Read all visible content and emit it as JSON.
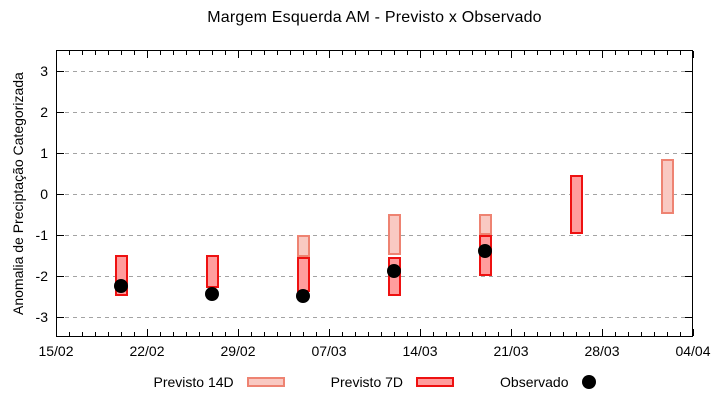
{
  "title": "Margem Esquerda AM - Previsto x Observado",
  "chart_data": {
    "type": "bar",
    "subtype": "range-bars-with-scatter-overlay",
    "title": "Margem Esquerda AM - Previsto x Observado",
    "xlabel": "",
    "ylabel": "Anomalia de Preciptação Categorizada",
    "ylim": [
      -3.5,
      3.5
    ],
    "y_ticks": [
      3,
      2,
      1,
      0,
      -1,
      -2,
      -3
    ],
    "x_days_total": 49,
    "x_major_ticks": [
      {
        "label": "15/02",
        "day": 0
      },
      {
        "label": "22/02",
        "day": 7
      },
      {
        "label": "29/02",
        "day": 14
      },
      {
        "label": "07/03",
        "day": 21
      },
      {
        "label": "14/03",
        "day": 28
      },
      {
        "label": "21/03",
        "day": 35
      },
      {
        "label": "28/03",
        "day": 42
      },
      {
        "label": "04/04",
        "day": 49
      }
    ],
    "x_minor_tick_every_days": 1,
    "grid": {
      "horizontal": true,
      "style": "dashed",
      "color": "#a3a3a3"
    },
    "bar_width_days": 1,
    "series": [
      {
        "name": "Previsto 14D",
        "kind": "range-bar",
        "fill": "#f9c9c2",
        "border": "#ee8372",
        "points": [
          {
            "date": "05/03",
            "day": 19,
            "low": -1.55,
            "high": -1.0
          },
          {
            "date": "12/03",
            "day": 26,
            "low": -1.5,
            "high": -0.5
          },
          {
            "date": "19/03",
            "day": 33,
            "low": -1.0,
            "high": -0.5
          },
          {
            "date": "02/04",
            "day": 47,
            "low": -0.5,
            "high": 0.85
          }
        ]
      },
      {
        "name": "Previsto 7D",
        "kind": "range-bar",
        "fill": "#ff9d9d",
        "border": "#ee1111",
        "points": [
          {
            "date": "20/02",
            "day": 5,
            "low": -2.5,
            "high": -1.5
          },
          {
            "date": "27/02",
            "day": 12,
            "low": -2.3,
            "high": -1.5
          },
          {
            "date": "05/03",
            "day": 19,
            "low": -2.4,
            "high": -1.55
          },
          {
            "date": "12/03",
            "day": 26,
            "low": -2.5,
            "high": -1.55
          },
          {
            "date": "19/03",
            "day": 33,
            "low": -2.0,
            "high": -1.0
          },
          {
            "date": "26/03",
            "day": 40,
            "low": -1.0,
            "high": 0.45
          }
        ]
      },
      {
        "name": "Observado",
        "kind": "scatter",
        "color": "#000000",
        "points": [
          {
            "date": "20/02",
            "day": 5,
            "value": -2.25
          },
          {
            "date": "27/02",
            "day": 12,
            "value": -2.45
          },
          {
            "date": "05/03",
            "day": 19,
            "value": -2.5
          },
          {
            "date": "12/03",
            "day": 26,
            "value": -1.9
          },
          {
            "date": "19/03",
            "day": 33,
            "value": -1.4
          }
        ]
      }
    ],
    "legend": {
      "position": "bottom",
      "entries": [
        "Previsto 14D",
        "Previsto 7D",
        "Observado"
      ]
    }
  },
  "frame_color": "#000000",
  "background_color": "#ffffff"
}
